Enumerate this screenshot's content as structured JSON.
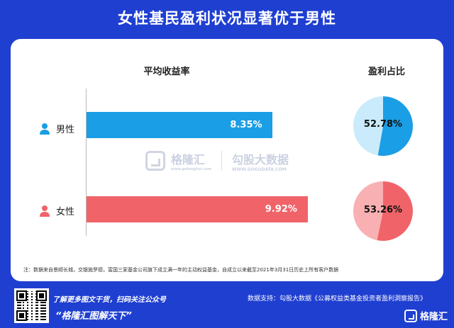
{
  "title": "女性基民盈利状况显著优于男性",
  "headers": {
    "left": "平均收益率",
    "right": "盈利占比"
  },
  "colors": {
    "male": "#1a9ee6",
    "male_light": "#c9ebfb",
    "female": "#f06469",
    "female_light": "#f9b0b2",
    "accent": "#1f3fd1"
  },
  "chart_data": [
    {
      "type": "bar",
      "title": "平均收益率",
      "categories": [
        "男性",
        "女性"
      ],
      "values": [
        8.35,
        9.92
      ],
      "value_labels": [
        "8.35%",
        "9.92%"
      ],
      "unit": "%",
      "xlim": [
        0,
        10.5
      ]
    },
    {
      "type": "pie",
      "title": "盈利占比",
      "charts": [
        {
          "group": "男性",
          "slices": [
            52.78,
            47.22
          ],
          "label": "52.78%"
        },
        {
          "group": "女性",
          "slices": [
            53.26,
            46.74
          ],
          "label": "53.26%"
        }
      ]
    }
  ],
  "labels": {
    "male": "男性",
    "female": "女性"
  },
  "watermark": {
    "brand": "格隆汇",
    "brand_sub": "www.gelonghui.com",
    "partner": "勾股大数据",
    "partner_sub": "WWW.GOGUDATA.COM"
  },
  "note": "注：数据来自景顺长城，交银施罗德，富国三家基金公司旗下成立满一年的主动权益基金，自成立以来截至2021年3月31日历史上所有客户数据",
  "footer": {
    "line1": "了解更多图文干货，扫码关注公众号",
    "line2": "“格隆汇图解天下”",
    "source": "数据支持：勾股大数据《公募权益类基金投资者盈利洞察报告》",
    "brand": "格隆汇"
  }
}
